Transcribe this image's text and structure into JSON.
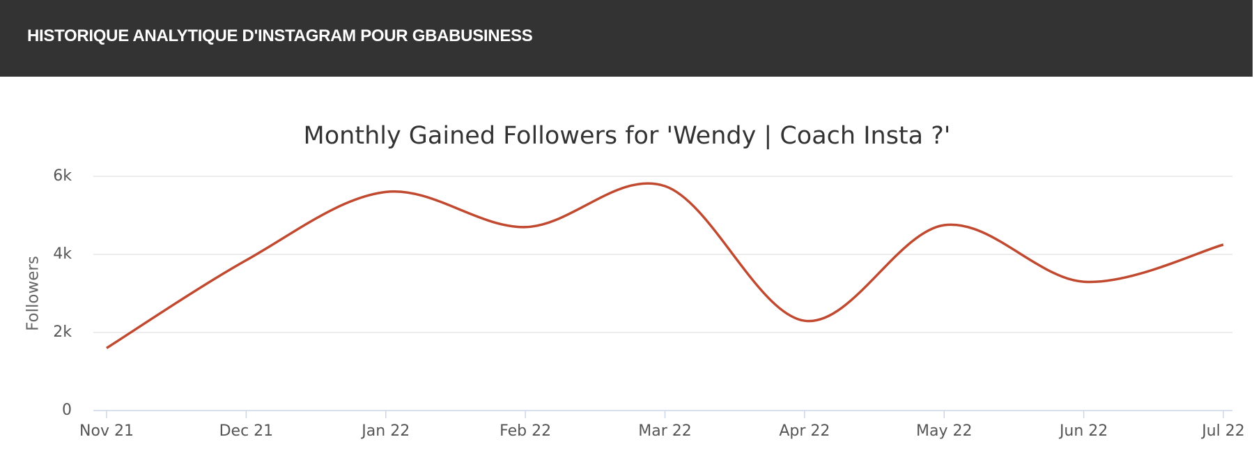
{
  "header": {
    "title": "HISTORIQUE ANALYTIQUE D'INSTAGRAM POUR GBABUSINESS"
  },
  "chart_data": {
    "type": "line",
    "title": "Monthly Gained Followers for 'Wendy | Coach Insta ?'",
    "y_label": "Followers",
    "categories": [
      "Nov 21",
      "Dec 21",
      "Jan 22",
      "Feb 22",
      "Mar 22",
      "Apr 22",
      "May 22",
      "Jun 22",
      "Jul 22"
    ],
    "values": [
      1600,
      3850,
      5600,
      4700,
      5750,
      2300,
      4750,
      3300,
      4250
    ],
    "color": "#c0492f",
    "ylim": [
      0,
      6000
    ],
    "yticks": [
      0,
      {
        "value": 2000,
        "label": "2k"
      },
      {
        "value": 4000,
        "label": "4k"
      },
      {
        "value": 6000,
        "label": "6k"
      }
    ],
    "grid": true
  }
}
